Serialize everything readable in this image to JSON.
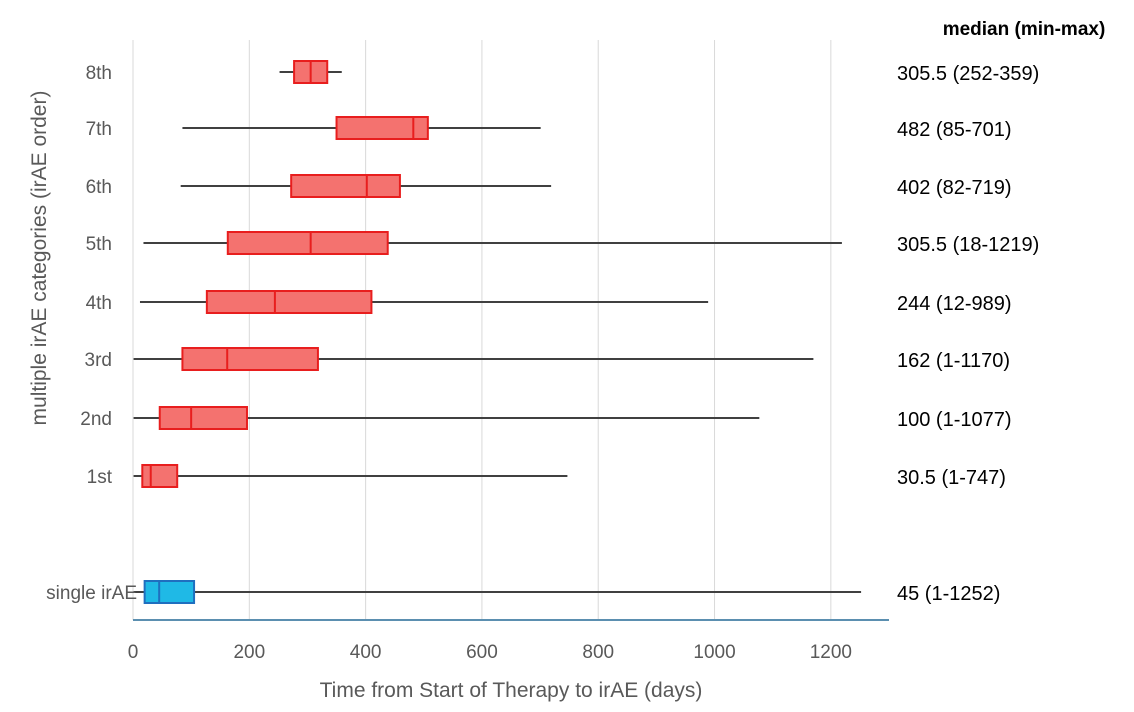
{
  "chart_data": {
    "type": "box",
    "orientation": "horizontal",
    "title": "",
    "xlabel": "Time from Start of Therapy to irAE (days)",
    "ylabel": "multiple irAE categories (irAE order)",
    "xlim": [
      0,
      1300
    ],
    "xticks": [
      "0",
      "200",
      "400",
      "600",
      "800",
      "1000",
      "1200"
    ],
    "xtick_values": [
      0,
      200,
      400,
      600,
      800,
      1000,
      1200
    ],
    "grid": "vertical",
    "annotation_header": "median (min-max)",
    "categories": [
      {
        "label": "8th",
        "min": 252,
        "q1": 277,
        "median": 305.5,
        "q3": 334,
        "max": 359,
        "annotation": "305.5 (252-359)",
        "group": "multiple"
      },
      {
        "label": "7th",
        "min": 85,
        "q1": 350,
        "median": 482,
        "q3": 507,
        "max": 701,
        "annotation": "482 (85-701)",
        "group": "multiple"
      },
      {
        "label": "6th",
        "min": 82,
        "q1": 272,
        "median": 402,
        "q3": 459,
        "max": 719,
        "annotation": "402 (82-719)",
        "group": "multiple"
      },
      {
        "label": "5th",
        "min": 18,
        "q1": 163,
        "median": 305.5,
        "q3": 438,
        "max": 1219,
        "annotation": "305.5 (18-1219)",
        "group": "multiple"
      },
      {
        "label": "4th",
        "min": 12,
        "q1": 127,
        "median": 244,
        "q3": 410,
        "max": 989,
        "annotation": "244 (12-989)",
        "group": "multiple"
      },
      {
        "label": "3rd",
        "min": 1,
        "q1": 85,
        "median": 162,
        "q3": 318,
        "max": 1170,
        "annotation": "162 (1-1170)",
        "group": "multiple"
      },
      {
        "label": "2nd",
        "min": 1,
        "q1": 46,
        "median": 100,
        "q3": 196,
        "max": 1077,
        "annotation": "100 (1-1077)",
        "group": "multiple"
      },
      {
        "label": "1st",
        "min": 1,
        "q1": 16,
        "median": 30.5,
        "q3": 76,
        "max": 747,
        "annotation": "30.5 (1-747)",
        "group": "multiple"
      },
      {
        "label": "single irAE",
        "min": 1,
        "q1": 20,
        "median": 45,
        "q3": 105,
        "max": 1252,
        "annotation": "45 (1-1252)",
        "group": "single"
      }
    ],
    "colors": {
      "multiple_fill": "#f4726f",
      "multiple_edge": "#e81e1e",
      "single_fill": "#1fb9e6",
      "single_edge": "#1f6fbf",
      "whisker": "#404040",
      "grid": "#d9d9d9",
      "axis": "#5b8fb0"
    }
  }
}
